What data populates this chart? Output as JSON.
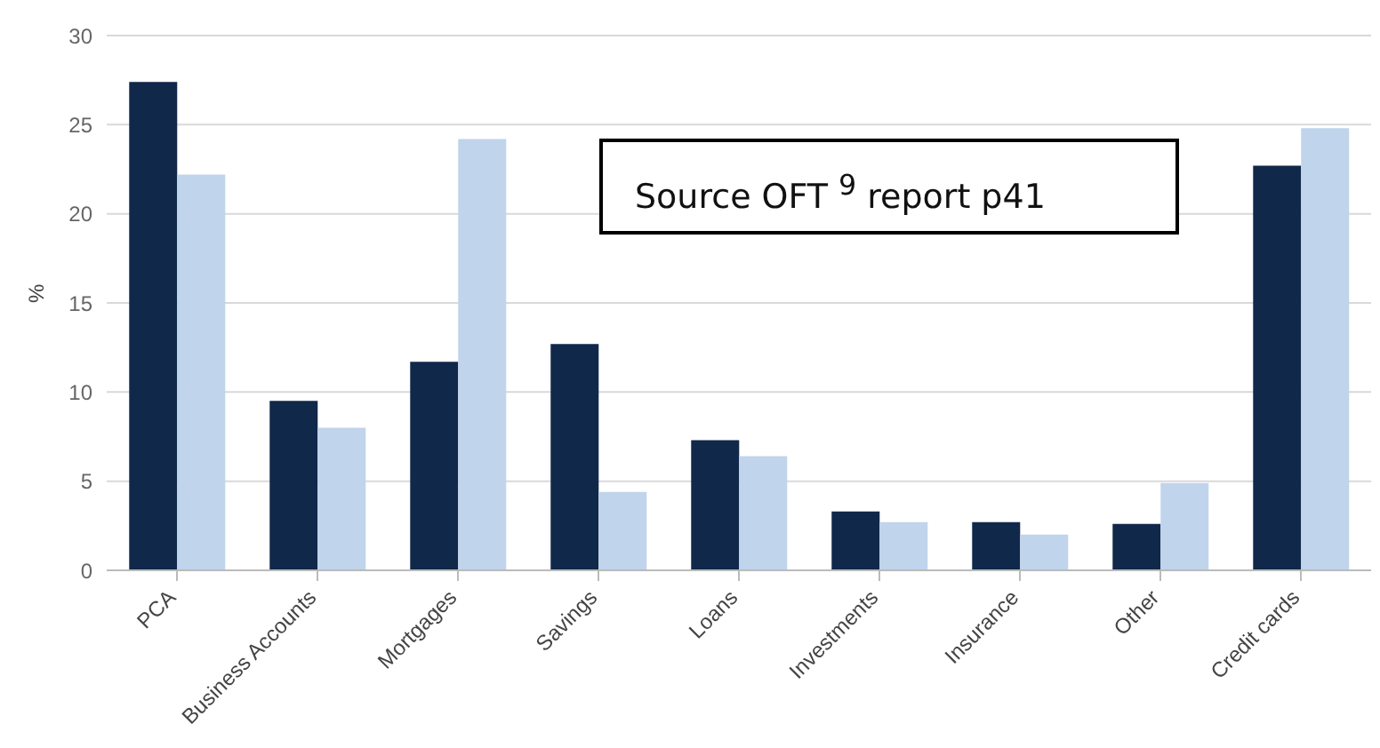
{
  "chart_data": {
    "type": "bar",
    "ylabel": "%",
    "categories": [
      "PCA",
      "Business Accounts",
      "Mortgages",
      "Savings",
      "Loans",
      "Investments",
      "Insurance",
      "Other",
      "Credit cards"
    ],
    "series": [
      {
        "color": "#10284a",
        "values": [
          27.4,
          9.5,
          11.7,
          12.7,
          7.3,
          3.3,
          2.7,
          2.6,
          22.7
        ]
      },
      {
        "color": "#c0d4ec",
        "values": [
          22.2,
          8.0,
          24.2,
          4.4,
          6.4,
          2.7,
          2.0,
          4.9,
          24.8
        ]
      }
    ],
    "ylim": [
      0,
      30
    ],
    "yticks": [
      0,
      5,
      10,
      15,
      20,
      25,
      30
    ],
    "grid": "y",
    "legend": false,
    "annotations": [
      "Source OFT $^{9}$ report p41"
    ]
  }
}
